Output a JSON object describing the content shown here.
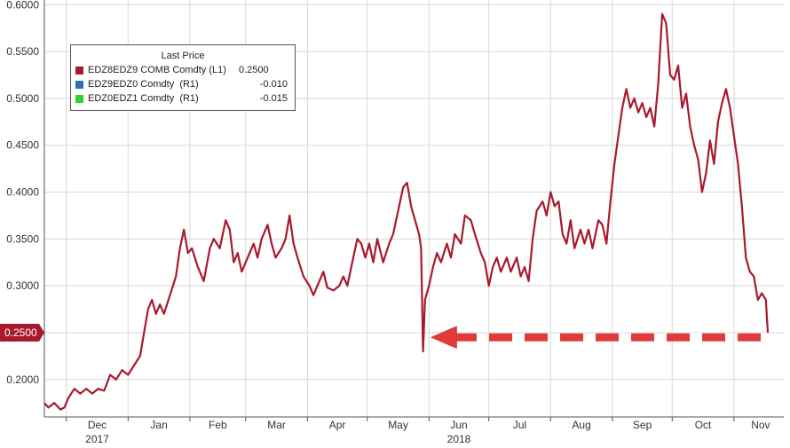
{
  "chart_data": {
    "type": "line",
    "ylim": [
      0.16,
      0.605
    ],
    "yticks": [
      "0.2000",
      "0.2500",
      "0.3000",
      "0.3500",
      "0.4000",
      "0.4500",
      "0.5000",
      "0.5500",
      "0.6000"
    ],
    "xticks": [
      {
        "label": "Dec",
        "sub": "2017",
        "date": "2017-12-01"
      },
      {
        "label": "Jan",
        "date": "2018-01-01"
      },
      {
        "label": "Feb",
        "date": "2018-02-01"
      },
      {
        "label": "Mar",
        "date": "2018-03-01"
      },
      {
        "label": "Apr",
        "date": "2018-04-01"
      },
      {
        "label": "May",
        "date": "2018-05-01"
      },
      {
        "label": "Jun",
        "sub": "2018",
        "date": "2018-06-01"
      },
      {
        "label": "Jul",
        "date": "2018-07-01"
      },
      {
        "label": "Aug",
        "date": "2018-08-01"
      },
      {
        "label": "Sep",
        "date": "2018-09-01"
      },
      {
        "label": "Oct",
        "date": "2018-10-01"
      },
      {
        "label": "Nov",
        "date": "2018-11-01"
      }
    ],
    "legend": {
      "title": "Last Price",
      "entries": [
        {
          "name": "EDZ8EDZ9 COMB Comdty",
          "axis": "(L1)",
          "value": "0.2500",
          "color": "#a8192e"
        },
        {
          "name": "EDZ9EDZ0 Comdty",
          "axis": "(R1)",
          "value": "-0.010",
          "color": "#2d6eb5"
        },
        {
          "name": "EDZ0EDZ1 Comdty",
          "axis": "(R1)",
          "value": "-0.015",
          "color": "#2fd22f"
        }
      ]
    },
    "last_price_label": "0.2500",
    "series": [
      {
        "name": "EDZ8EDZ9 COMB Comdty",
        "color": "#a8192e",
        "points": [
          [
            "2017-11-20",
            0.175
          ],
          [
            "2017-11-22",
            0.17
          ],
          [
            "2017-11-25",
            0.175
          ],
          [
            "2017-11-28",
            0.168
          ],
          [
            "2017-11-30",
            0.17
          ],
          [
            "2017-12-02",
            0.18
          ],
          [
            "2017-12-05",
            0.19
          ],
          [
            "2017-12-08",
            0.185
          ],
          [
            "2017-12-11",
            0.19
          ],
          [
            "2017-12-14",
            0.185
          ],
          [
            "2017-12-17",
            0.19
          ],
          [
            "2017-12-20",
            0.188
          ],
          [
            "2017-12-23",
            0.205
          ],
          [
            "2017-12-26",
            0.2
          ],
          [
            "2017-12-29",
            0.21
          ],
          [
            "2018-01-01",
            0.205
          ],
          [
            "2018-01-04",
            0.215
          ],
          [
            "2018-01-07",
            0.225
          ],
          [
            "2018-01-09",
            0.25
          ],
          [
            "2018-01-11",
            0.275
          ],
          [
            "2018-01-13",
            0.285
          ],
          [
            "2018-01-15",
            0.27
          ],
          [
            "2018-01-17",
            0.28
          ],
          [
            "2018-01-19",
            0.27
          ],
          [
            "2018-01-22",
            0.29
          ],
          [
            "2018-01-25",
            0.31
          ],
          [
            "2018-01-27",
            0.34
          ],
          [
            "2018-01-29",
            0.36
          ],
          [
            "2018-01-31",
            0.335
          ],
          [
            "2018-02-02",
            0.34
          ],
          [
            "2018-02-05",
            0.32
          ],
          [
            "2018-02-08",
            0.305
          ],
          [
            "2018-02-11",
            0.34
          ],
          [
            "2018-02-13",
            0.35
          ],
          [
            "2018-02-16",
            0.34
          ],
          [
            "2018-02-19",
            0.37
          ],
          [
            "2018-02-21",
            0.36
          ],
          [
            "2018-02-23",
            0.325
          ],
          [
            "2018-02-25",
            0.335
          ],
          [
            "2018-02-27",
            0.315
          ],
          [
            "2018-03-02",
            0.33
          ],
          [
            "2018-03-05",
            0.345
          ],
          [
            "2018-03-07",
            0.33
          ],
          [
            "2018-03-09",
            0.35
          ],
          [
            "2018-03-12",
            0.365
          ],
          [
            "2018-03-14",
            0.345
          ],
          [
            "2018-03-16",
            0.33
          ],
          [
            "2018-03-19",
            0.34
          ],
          [
            "2018-03-21",
            0.35
          ],
          [
            "2018-03-23",
            0.375
          ],
          [
            "2018-03-25",
            0.345
          ],
          [
            "2018-03-27",
            0.33
          ],
          [
            "2018-03-30",
            0.31
          ],
          [
            "2018-04-02",
            0.3
          ],
          [
            "2018-04-04",
            0.29
          ],
          [
            "2018-04-07",
            0.305
          ],
          [
            "2018-04-09",
            0.315
          ],
          [
            "2018-04-11",
            0.298
          ],
          [
            "2018-04-14",
            0.295
          ],
          [
            "2018-04-17",
            0.3
          ],
          [
            "2018-04-19",
            0.31
          ],
          [
            "2018-04-21",
            0.3
          ],
          [
            "2018-04-24",
            0.33
          ],
          [
            "2018-04-26",
            0.35
          ],
          [
            "2018-04-28",
            0.345
          ],
          [
            "2018-04-30",
            0.33
          ],
          [
            "2018-05-02",
            0.345
          ],
          [
            "2018-05-04",
            0.325
          ],
          [
            "2018-05-06",
            0.35
          ],
          [
            "2018-05-09",
            0.325
          ],
          [
            "2018-05-12",
            0.345
          ],
          [
            "2018-05-14",
            0.355
          ],
          [
            "2018-05-16",
            0.375
          ],
          [
            "2018-05-19",
            0.405
          ],
          [
            "2018-05-21",
            0.41
          ],
          [
            "2018-05-23",
            0.385
          ],
          [
            "2018-05-25",
            0.37
          ],
          [
            "2018-05-27",
            0.355
          ],
          [
            "2018-05-28",
            0.34
          ],
          [
            "2018-05-29",
            0.23
          ],
          [
            "2018-05-30",
            0.285
          ],
          [
            "2018-06-01",
            0.3
          ],
          [
            "2018-06-03",
            0.32
          ],
          [
            "2018-06-05",
            0.335
          ],
          [
            "2018-06-07",
            0.325
          ],
          [
            "2018-06-10",
            0.345
          ],
          [
            "2018-06-12",
            0.33
          ],
          [
            "2018-06-14",
            0.355
          ],
          [
            "2018-06-17",
            0.345
          ],
          [
            "2018-06-19",
            0.375
          ],
          [
            "2018-06-22",
            0.37
          ],
          [
            "2018-06-24",
            0.355
          ],
          [
            "2018-06-27",
            0.335
          ],
          [
            "2018-06-29",
            0.325
          ],
          [
            "2018-07-01",
            0.3
          ],
          [
            "2018-07-03",
            0.32
          ],
          [
            "2018-07-05",
            0.33
          ],
          [
            "2018-07-07",
            0.315
          ],
          [
            "2018-07-10",
            0.33
          ],
          [
            "2018-07-12",
            0.315
          ],
          [
            "2018-07-15",
            0.33
          ],
          [
            "2018-07-17",
            0.31
          ],
          [
            "2018-07-19",
            0.32
          ],
          [
            "2018-07-21",
            0.305
          ],
          [
            "2018-07-23",
            0.35
          ],
          [
            "2018-07-25",
            0.38
          ],
          [
            "2018-07-28",
            0.39
          ],
          [
            "2018-07-30",
            0.375
          ],
          [
            "2018-08-01",
            0.4
          ],
          [
            "2018-08-03",
            0.385
          ],
          [
            "2018-08-05",
            0.39
          ],
          [
            "2018-08-07",
            0.355
          ],
          [
            "2018-08-09",
            0.345
          ],
          [
            "2018-08-11",
            0.37
          ],
          [
            "2018-08-13",
            0.34
          ],
          [
            "2018-08-16",
            0.36
          ],
          [
            "2018-08-18",
            0.345
          ],
          [
            "2018-08-20",
            0.36
          ],
          [
            "2018-08-22",
            0.34
          ],
          [
            "2018-08-25",
            0.37
          ],
          [
            "2018-08-27",
            0.365
          ],
          [
            "2018-08-29",
            0.345
          ],
          [
            "2018-08-31",
            0.39
          ],
          [
            "2018-09-02",
            0.43
          ],
          [
            "2018-09-04",
            0.46
          ],
          [
            "2018-09-06",
            0.49
          ],
          [
            "2018-09-08",
            0.51
          ],
          [
            "2018-09-10",
            0.49
          ],
          [
            "2018-09-12",
            0.5
          ],
          [
            "2018-09-14",
            0.485
          ],
          [
            "2018-09-16",
            0.495
          ],
          [
            "2018-09-18",
            0.48
          ],
          [
            "2018-09-20",
            0.49
          ],
          [
            "2018-09-22",
            0.47
          ],
          [
            "2018-09-24",
            0.515
          ],
          [
            "2018-09-26",
            0.59
          ],
          [
            "2018-09-28",
            0.58
          ],
          [
            "2018-09-30",
            0.525
          ],
          [
            "2018-10-02",
            0.52
          ],
          [
            "2018-10-04",
            0.535
          ],
          [
            "2018-10-06",
            0.49
          ],
          [
            "2018-10-08",
            0.505
          ],
          [
            "2018-10-10",
            0.47
          ],
          [
            "2018-10-12",
            0.45
          ],
          [
            "2018-10-14",
            0.435
          ],
          [
            "2018-10-16",
            0.4
          ],
          [
            "2018-10-18",
            0.42
          ],
          [
            "2018-10-20",
            0.455
          ],
          [
            "2018-10-22",
            0.43
          ],
          [
            "2018-10-24",
            0.475
          ],
          [
            "2018-10-26",
            0.495
          ],
          [
            "2018-10-28",
            0.51
          ],
          [
            "2018-10-30",
            0.49
          ],
          [
            "2018-11-01",
            0.46
          ],
          [
            "2018-11-03",
            0.43
          ],
          [
            "2018-11-05",
            0.385
          ],
          [
            "2018-11-07",
            0.33
          ],
          [
            "2018-11-09",
            0.315
          ],
          [
            "2018-11-11",
            0.31
          ],
          [
            "2018-11-13",
            0.285
          ],
          [
            "2018-11-15",
            0.292
          ],
          [
            "2018-11-17",
            0.285
          ],
          [
            "2018-11-18",
            0.25
          ]
        ]
      }
    ],
    "annotation": {
      "type": "dashed-arrow",
      "color": "#e03a3a",
      "level": 0.245,
      "from": "2018-11-18",
      "to": "2018-05-30"
    }
  }
}
